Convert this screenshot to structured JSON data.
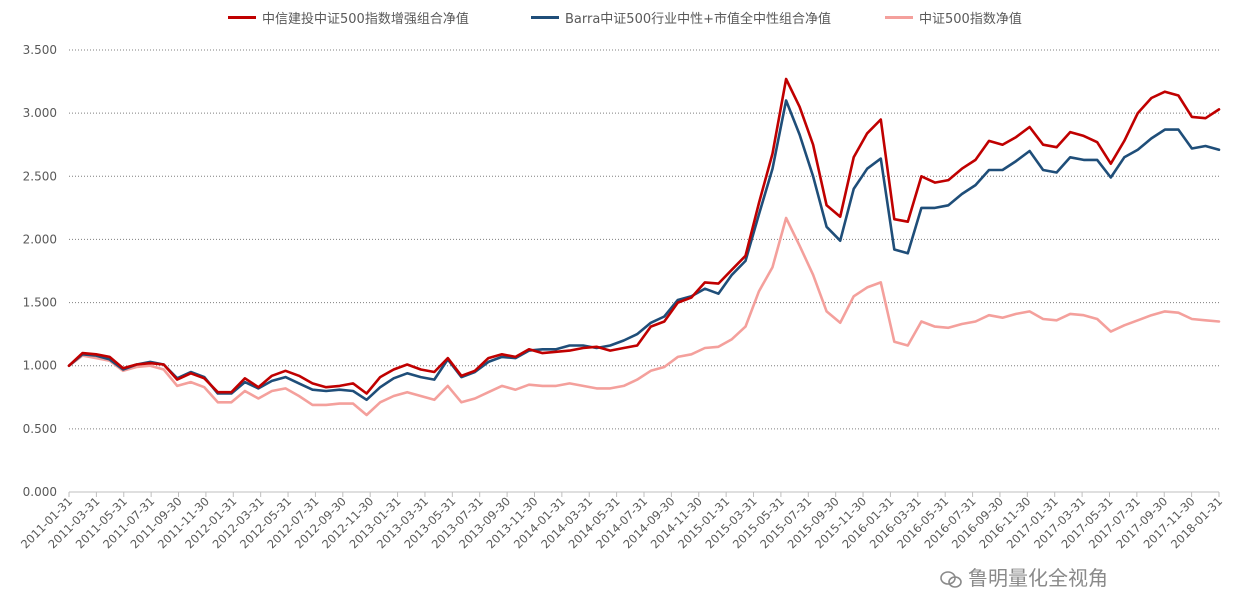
{
  "chart_data": {
    "type": "line",
    "title": "",
    "xlabel": "",
    "ylabel": "",
    "ylim": [
      0,
      3.5
    ],
    "yticks": [
      "0.000",
      "0.500",
      "1.000",
      "1.500",
      "2.000",
      "2.500",
      "3.000",
      "3.500"
    ],
    "grid": "horizontal-dotted",
    "legend_position": "top",
    "x_tick_labels": [
      "2011-01-31",
      "2011-03-31",
      "2011-05-31",
      "2011-07-31",
      "2011-09-30",
      "2011-11-30",
      "2012-01-31",
      "2012-03-31",
      "2012-05-31",
      "2012-07-31",
      "2012-09-30",
      "2012-11-30",
      "2013-01-31",
      "2013-03-31",
      "2013-05-31",
      "2013-07-31",
      "2013-09-30",
      "2013-11-30",
      "2014-01-31",
      "2014-03-31",
      "2014-05-31",
      "2014-07-31",
      "2014-09-30",
      "2014-11-30",
      "2015-01-31",
      "2015-03-31",
      "2015-05-31",
      "2015-07-31",
      "2015-09-30",
      "2015-11-30",
      "2016-01-31",
      "2016-03-31",
      "2016-05-31",
      "2016-07-31",
      "2016-09-30",
      "2016-11-30",
      "2017-01-31",
      "2017-03-31",
      "2017-05-31",
      "2017-07-31",
      "2017-09-30",
      "2017-11-30",
      "2018-01-31"
    ],
    "series": [
      {
        "name": "中信建投中证500指数增强组合净值",
        "color": "#c00000",
        "values": [
          1.0,
          1.1,
          1.09,
          1.07,
          0.98,
          1.01,
          1.02,
          1.01,
          0.89,
          0.94,
          0.9,
          0.79,
          0.79,
          0.9,
          0.83,
          0.92,
          0.96,
          0.92,
          0.86,
          0.83,
          0.84,
          0.86,
          0.78,
          0.91,
          0.97,
          1.01,
          0.97,
          0.95,
          1.06,
          0.92,
          0.96,
          1.06,
          1.09,
          1.07,
          1.13,
          1.1,
          1.11,
          1.12,
          1.14,
          1.15,
          1.12,
          1.14,
          1.16,
          1.31,
          1.35,
          1.5,
          1.54,
          1.66,
          1.65,
          1.76,
          1.87,
          2.29,
          2.68,
          3.27,
          3.05,
          2.75,
          2.27,
          2.18,
          2.65,
          2.84,
          2.95,
          2.16,
          2.14,
          2.5,
          2.45,
          2.47,
          2.56,
          2.63,
          2.78,
          2.75,
          2.81,
          2.89,
          2.75,
          2.73,
          2.85,
          2.82,
          2.77,
          2.6,
          2.78,
          3.0,
          3.12,
          3.17,
          3.14,
          2.97,
          2.96,
          3.03
        ]
      },
      {
        "name": "Barra中证500行业中性+市值全中性组合净值",
        "color": "#1f4e79",
        "values": [
          1.0,
          1.09,
          1.08,
          1.05,
          0.97,
          1.01,
          1.03,
          1.01,
          0.9,
          0.95,
          0.91,
          0.78,
          0.78,
          0.87,
          0.82,
          0.88,
          0.91,
          0.86,
          0.81,
          0.8,
          0.81,
          0.8,
          0.73,
          0.83,
          0.9,
          0.94,
          0.91,
          0.89,
          1.05,
          0.91,
          0.95,
          1.03,
          1.07,
          1.06,
          1.12,
          1.13,
          1.13,
          1.16,
          1.16,
          1.14,
          1.16,
          1.2,
          1.25,
          1.34,
          1.39,
          1.52,
          1.55,
          1.61,
          1.57,
          1.72,
          1.83,
          2.2,
          2.56,
          3.1,
          2.83,
          2.5,
          2.1,
          1.99,
          2.4,
          2.56,
          2.64,
          1.92,
          1.89,
          2.25,
          2.25,
          2.27,
          2.36,
          2.43,
          2.55,
          2.55,
          2.62,
          2.7,
          2.55,
          2.53,
          2.65,
          2.63,
          2.63,
          2.49,
          2.65,
          2.71,
          2.8,
          2.87,
          2.87,
          2.72,
          2.74,
          2.71
        ]
      },
      {
        "name": "中证500指数净值",
        "color": "#f4a09c",
        "values": [
          1.0,
          1.08,
          1.06,
          1.04,
          0.96,
          0.99,
          1.0,
          0.97,
          0.84,
          0.87,
          0.83,
          0.71,
          0.71,
          0.8,
          0.74,
          0.8,
          0.82,
          0.76,
          0.69,
          0.69,
          0.7,
          0.7,
          0.61,
          0.71,
          0.76,
          0.79,
          0.76,
          0.73,
          0.84,
          0.71,
          0.74,
          0.79,
          0.84,
          0.81,
          0.85,
          0.84,
          0.84,
          0.86,
          0.84,
          0.82,
          0.82,
          0.84,
          0.89,
          0.96,
          0.99,
          1.07,
          1.09,
          1.14,
          1.15,
          1.21,
          1.31,
          1.59,
          1.78,
          2.17,
          1.95,
          1.72,
          1.43,
          1.34,
          1.55,
          1.62,
          1.66,
          1.19,
          1.16,
          1.35,
          1.31,
          1.3,
          1.33,
          1.35,
          1.4,
          1.38,
          1.41,
          1.43,
          1.37,
          1.36,
          1.41,
          1.4,
          1.37,
          1.27,
          1.32,
          1.36,
          1.4,
          1.43,
          1.42,
          1.37,
          1.36,
          1.35
        ]
      }
    ]
  },
  "watermark_text": "鲁明量化全视角"
}
